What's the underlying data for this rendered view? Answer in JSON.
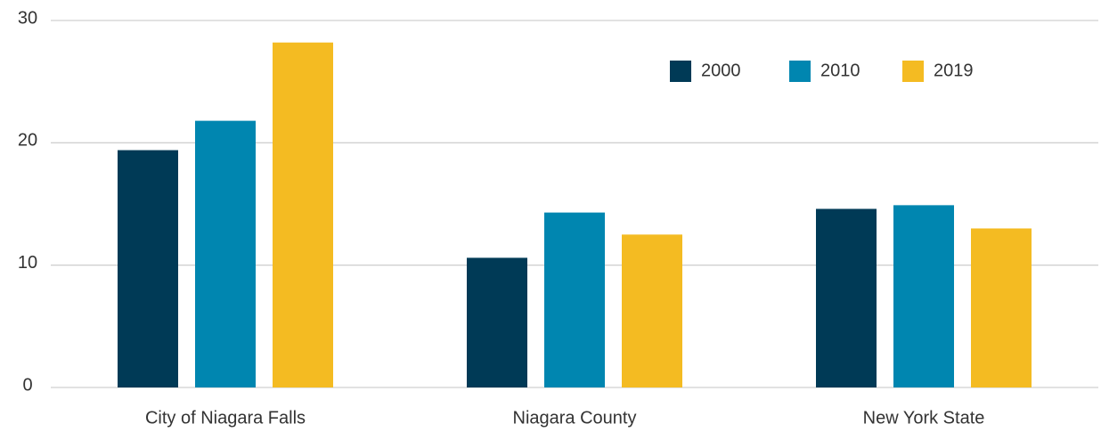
{
  "chart_data": {
    "type": "bar",
    "categories": [
      "City of Niagara Falls",
      "Niagara County",
      "New York State"
    ],
    "series": [
      {
        "name": "2000",
        "color": "#003a56",
        "values": [
          19.4,
          10.6,
          14.6
        ]
      },
      {
        "name": "2010",
        "color": "#0086b0",
        "values": [
          21.8,
          14.3,
          14.9
        ]
      },
      {
        "name": "2019",
        "color": "#f4bb22",
        "values": [
          28.2,
          12.5,
          13.0
        ]
      }
    ],
    "ylim": [
      0,
      30
    ],
    "yticks": [
      0,
      10,
      20,
      30
    ],
    "grid": true,
    "legend": "upper right"
  }
}
